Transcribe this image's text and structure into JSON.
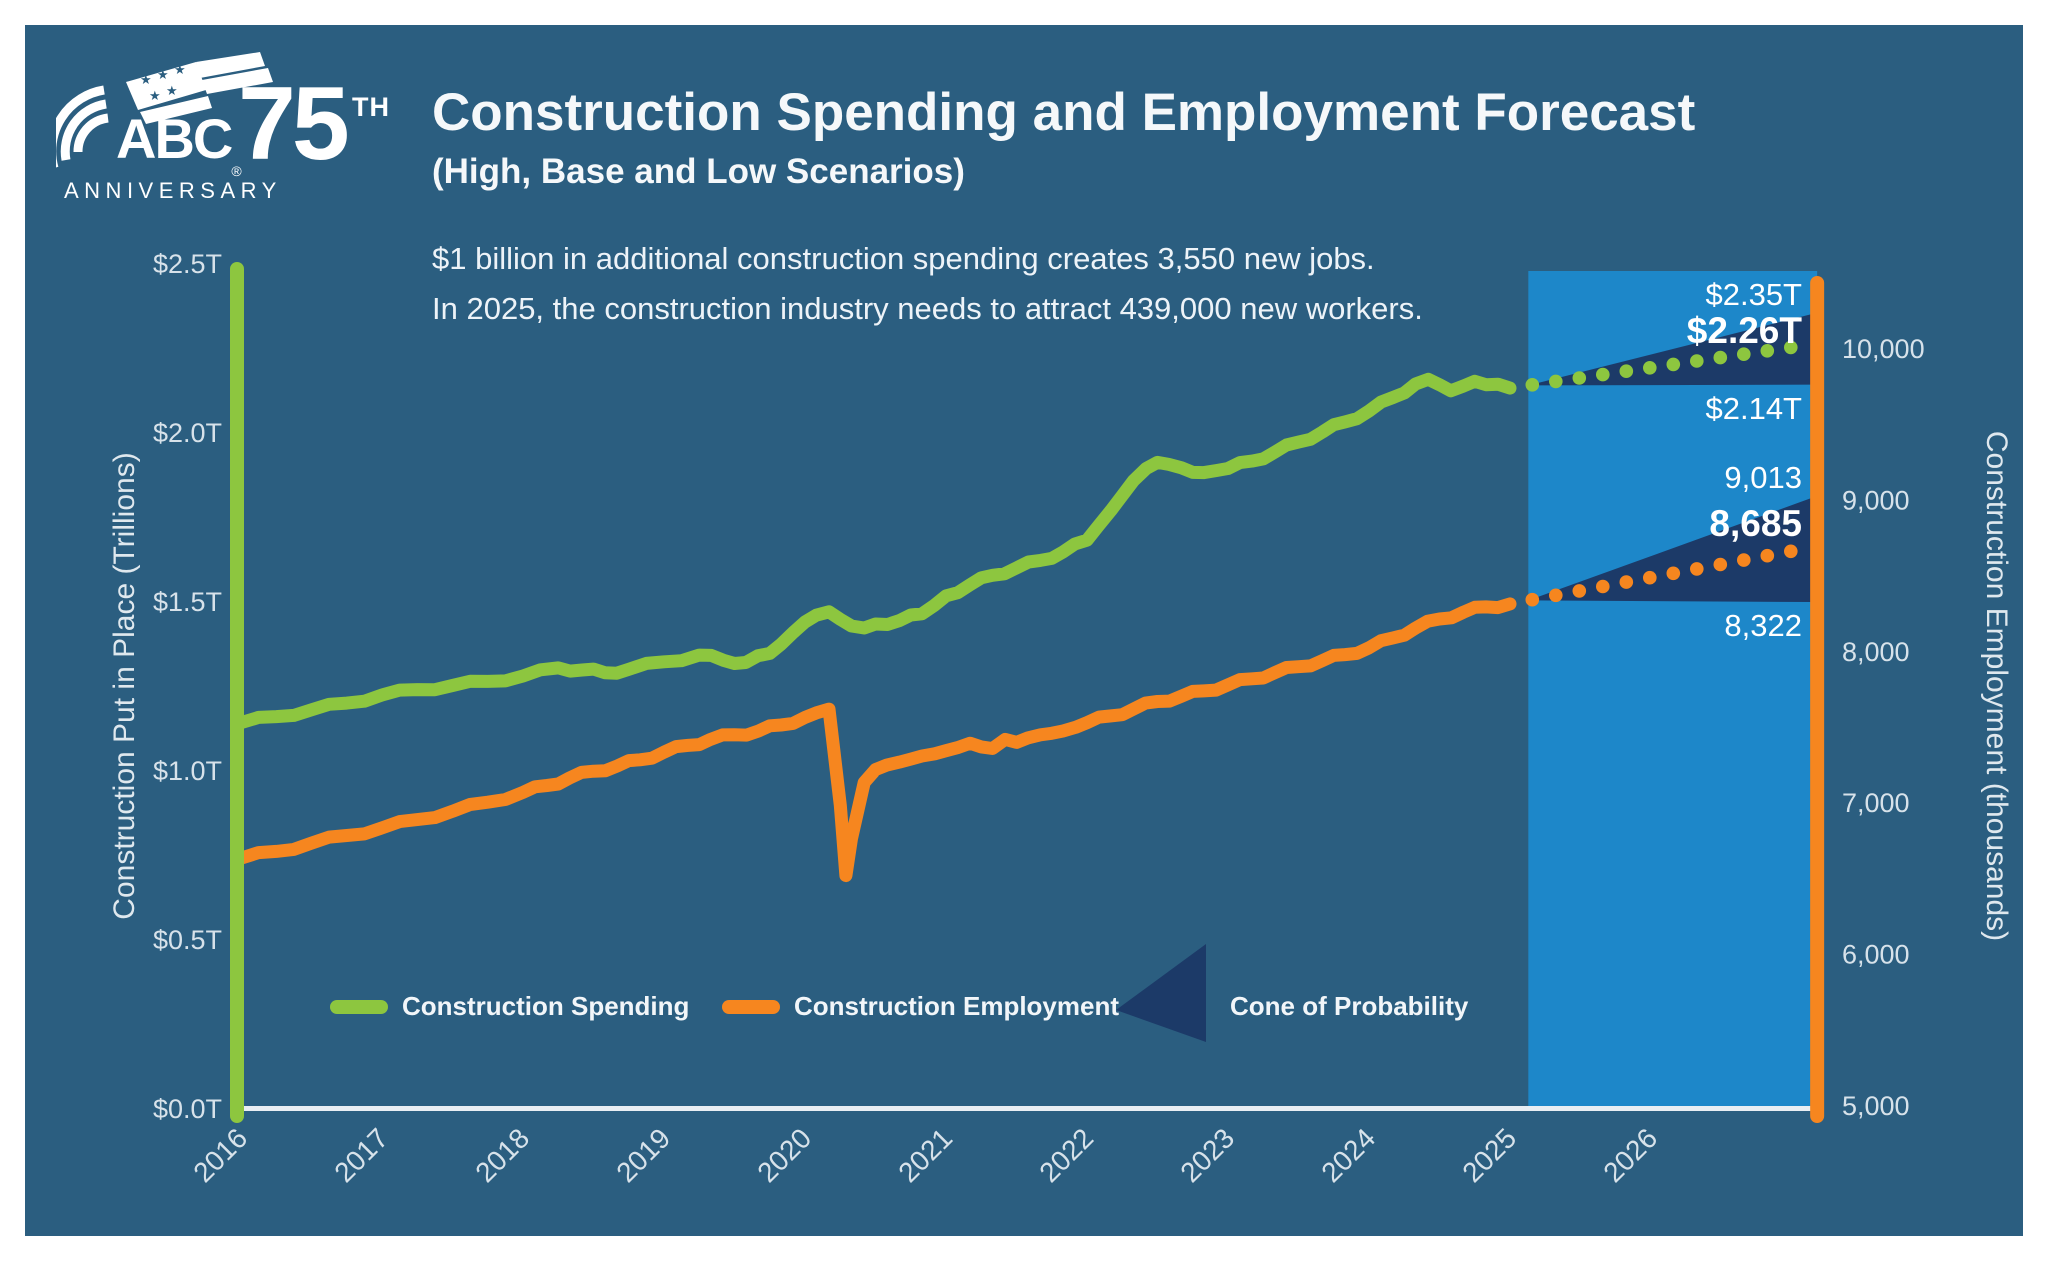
{
  "logo": {
    "abc": "ABC",
    "registered": "®",
    "seventy_five": "75",
    "th": "TH",
    "anniversary": "ANNIVERSARY"
  },
  "header": {
    "title": "Construction Spending and Employment Forecast",
    "subtitle": "(High, Base and Low Scenarios)"
  },
  "annotation": {
    "line1": "$1 billion in additional construction spending creates 3,550 new jobs.",
    "line2": "In 2025, the construction industry needs to attract 439,000 new workers."
  },
  "colors": {
    "panel_background": "#2b5e80",
    "forecast_band": "#1d87c9",
    "cone": "#1c3a68",
    "spending_green": "#8dc63f",
    "employment_orange": "#f6861f",
    "x_axis_line": "#e9eef3",
    "tick_text": "#d7e2ea",
    "label_text": "#ffffff"
  },
  "chart_data": {
    "type": "line",
    "title": "Construction Spending and Employment Forecast",
    "subtitle": "(High, Base and Low Scenarios)",
    "grid": false,
    "x_axis": {
      "ticks": [
        2016,
        2017,
        2018,
        2019,
        2020,
        2021,
        2022,
        2023,
        2024,
        2025,
        2026
      ],
      "range": [
        2016,
        2027.15
      ],
      "forecast_start_year": 2025.0,
      "band_start_year": 2025.13
    },
    "left_axis": {
      "label": "Construction Put in Place (Trillions)",
      "tick_labels": [
        "$0.0T",
        "$0.5T",
        "$1.0T",
        "$1.5T",
        "$2.0T",
        "$2.5T"
      ],
      "tick_values": [
        0,
        0.5,
        1.0,
        1.5,
        2.0,
        2.5
      ],
      "range": [
        0,
        2.5
      ],
      "axis_color": "#8dc63f"
    },
    "right_axis": {
      "label": "Construction Employment (thousands)",
      "tick_labels": [
        "5,000",
        "6,000",
        "7,000",
        "8,000",
        "9,000",
        "10,000"
      ],
      "tick_values": [
        5000,
        6000,
        7000,
        8000,
        9000,
        10000
      ],
      "range": [
        5000,
        10530
      ],
      "axis_color": "#f6861f"
    },
    "series": [
      {
        "name": "Construction Spending",
        "axis": "left",
        "color": "#8dc63f",
        "points": [
          [
            2016.0,
            1.14
          ],
          [
            2016.25,
            1.158
          ],
          [
            2016.5,
            1.178
          ],
          [
            2016.75,
            1.198
          ],
          [
            2017.0,
            1.222
          ],
          [
            2017.25,
            1.238
          ],
          [
            2017.5,
            1.25
          ],
          [
            2017.75,
            1.262
          ],
          [
            2018.0,
            1.278
          ],
          [
            2018.25,
            1.302
          ],
          [
            2018.42,
            1.296
          ],
          [
            2018.58,
            1.288
          ],
          [
            2018.75,
            1.298
          ],
          [
            2019.0,
            1.32
          ],
          [
            2019.25,
            1.34
          ],
          [
            2019.42,
            1.325
          ],
          [
            2019.58,
            1.318
          ],
          [
            2019.75,
            1.345
          ],
          [
            2019.83,
            1.372
          ],
          [
            2019.92,
            1.408
          ],
          [
            2020.0,
            1.438
          ],
          [
            2020.08,
            1.458
          ],
          [
            2020.17,
            1.468
          ],
          [
            2020.25,
            1.446
          ],
          [
            2020.33,
            1.426
          ],
          [
            2020.42,
            1.42
          ],
          [
            2020.5,
            1.432
          ],
          [
            2020.67,
            1.442
          ],
          [
            2020.83,
            1.462
          ],
          [
            2020.92,
            1.488
          ],
          [
            2021.0,
            1.515
          ],
          [
            2021.17,
            1.548
          ],
          [
            2021.33,
            1.576
          ],
          [
            2021.5,
            1.598
          ],
          [
            2021.67,
            1.62
          ],
          [
            2021.83,
            1.645
          ],
          [
            2022.0,
            1.68
          ],
          [
            2022.08,
            1.722
          ],
          [
            2022.17,
            1.768
          ],
          [
            2022.25,
            1.812
          ],
          [
            2022.33,
            1.856
          ],
          [
            2022.42,
            1.892
          ],
          [
            2022.5,
            1.91
          ],
          [
            2022.58,
            1.904
          ],
          [
            2022.67,
            1.894
          ],
          [
            2022.83,
            1.88
          ],
          [
            2022.92,
            1.886
          ],
          [
            2023.0,
            1.892
          ],
          [
            2023.17,
            1.914
          ],
          [
            2023.33,
            1.94
          ],
          [
            2023.5,
            1.97
          ],
          [
            2023.67,
            2.0
          ],
          [
            2023.83,
            2.03
          ],
          [
            2024.0,
            2.062
          ],
          [
            2024.17,
            2.102
          ],
          [
            2024.33,
            2.142
          ],
          [
            2024.42,
            2.156
          ],
          [
            2024.5,
            2.14
          ],
          [
            2024.58,
            2.122
          ],
          [
            2024.67,
            2.136
          ],
          [
            2024.75,
            2.15
          ],
          [
            2024.83,
            2.14
          ],
          [
            2025.0,
            2.13
          ]
        ],
        "forecast": {
          "start_year": 2025.0,
          "end_year": 2027.15,
          "start_value": 2.13,
          "high": 2.35,
          "base": 2.26,
          "low": 2.14,
          "labels": {
            "high": "$2.35T",
            "base": "$2.26T",
            "low": "$2.14T"
          }
        }
      },
      {
        "name": "Construction Employment",
        "axis": "right",
        "color": "#f6861f",
        "points": [
          [
            2016.0,
            6630
          ],
          [
            2016.25,
            6675
          ],
          [
            2016.5,
            6730
          ],
          [
            2016.75,
            6780
          ],
          [
            2017.0,
            6830
          ],
          [
            2017.25,
            6885
          ],
          [
            2017.5,
            6940
          ],
          [
            2017.75,
            7000
          ],
          [
            2018.0,
            7065
          ],
          [
            2018.17,
            7110
          ],
          [
            2018.33,
            7160
          ],
          [
            2018.5,
            7205
          ],
          [
            2018.67,
            7240
          ],
          [
            2018.83,
            7280
          ],
          [
            2019.0,
            7330
          ],
          [
            2019.17,
            7375
          ],
          [
            2019.33,
            7415
          ],
          [
            2019.5,
            7445
          ],
          [
            2019.67,
            7470
          ],
          [
            2019.83,
            7510
          ],
          [
            2020.0,
            7560
          ],
          [
            2020.08,
            7590
          ],
          [
            2020.17,
            7615
          ],
          [
            2020.25,
            6980
          ],
          [
            2020.29,
            6515
          ],
          [
            2020.33,
            6760
          ],
          [
            2020.42,
            7130
          ],
          [
            2020.5,
            7215
          ],
          [
            2020.58,
            7245
          ],
          [
            2020.67,
            7265
          ],
          [
            2020.75,
            7285
          ],
          [
            2020.83,
            7305
          ],
          [
            2020.92,
            7320
          ],
          [
            2021.0,
            7340
          ],
          [
            2021.08,
            7360
          ],
          [
            2021.17,
            7390
          ],
          [
            2021.25,
            7365
          ],
          [
            2021.33,
            7355
          ],
          [
            2021.42,
            7415
          ],
          [
            2021.5,
            7395
          ],
          [
            2021.58,
            7425
          ],
          [
            2021.67,
            7445
          ],
          [
            2021.75,
            7455
          ],
          [
            2021.83,
            7470
          ],
          [
            2021.92,
            7495
          ],
          [
            2022.0,
            7525
          ],
          [
            2022.17,
            7570
          ],
          [
            2022.33,
            7615
          ],
          [
            2022.5,
            7665
          ],
          [
            2022.67,
            7700
          ],
          [
            2022.83,
            7735
          ],
          [
            2023.0,
            7775
          ],
          [
            2023.17,
            7815
          ],
          [
            2023.33,
            7855
          ],
          [
            2023.5,
            7895
          ],
          [
            2023.67,
            7935
          ],
          [
            2023.83,
            7975
          ],
          [
            2024.0,
            8020
          ],
          [
            2024.17,
            8085
          ],
          [
            2024.33,
            8150
          ],
          [
            2024.5,
            8210
          ],
          [
            2024.67,
            8255
          ],
          [
            2024.83,
            8290
          ],
          [
            2025.0,
            8310
          ]
        ],
        "forecast": {
          "start_year": 2025.0,
          "end_year": 2027.15,
          "start_value": 8310,
          "high": 9013,
          "base": 8685,
          "low": 8322,
          "labels": {
            "high": "9,013",
            "base": "8,685",
            "low": "8,322"
          }
        }
      }
    ]
  },
  "legend": {
    "items": [
      {
        "label": "Construction Spending",
        "swatch": "line",
        "color": "#8dc63f"
      },
      {
        "label": "Construction Employment",
        "swatch": "line",
        "color": "#f6861f"
      },
      {
        "label": "Cone of Probability",
        "swatch": "cone",
        "color": "#1c3a68"
      }
    ]
  }
}
